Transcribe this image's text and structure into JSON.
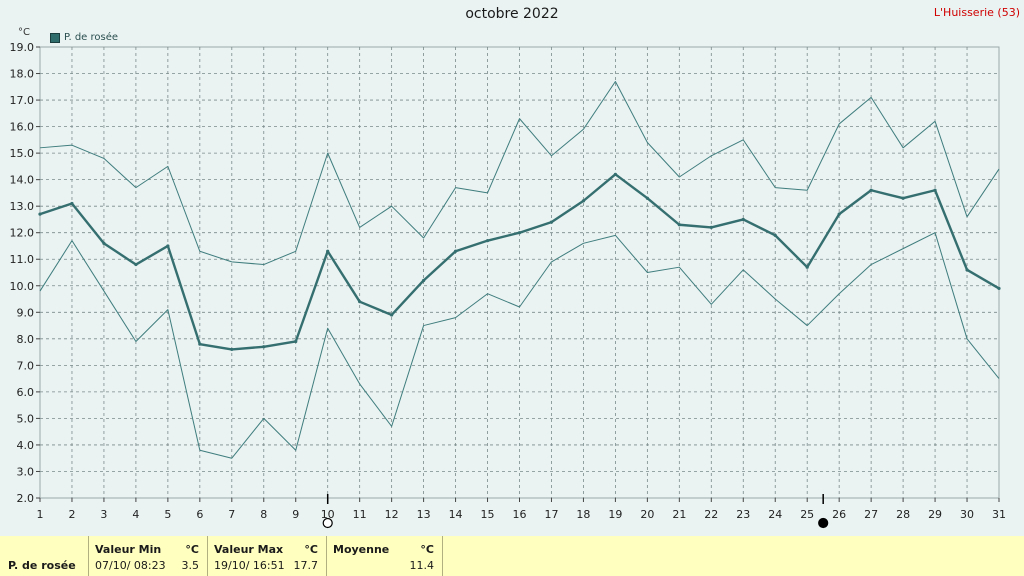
{
  "title": "octobre 2022",
  "station": "L'Huisserie (53)",
  "unit": "°C",
  "legend_label": "P. de rosée",
  "colors": {
    "background": "#eaf2f2",
    "plot_bg": "#eaf2f2",
    "grid": "#7a8a8a",
    "mean_line": "#356f6f",
    "band_line": "#3f7d7d",
    "station_text": "#d00000",
    "stats_band": "#ffffc0"
  },
  "chart_data": {
    "type": "line",
    "title": "octobre 2022",
    "xlabel": "",
    "ylabel": "°C",
    "xlim": [
      1,
      31
    ],
    "ylim": [
      2.0,
      19.0
    ],
    "grid": true,
    "legend": "top-left",
    "x": [
      1,
      2,
      3,
      4,
      5,
      6,
      7,
      8,
      9,
      10,
      11,
      12,
      13,
      14,
      15,
      16,
      17,
      18,
      19,
      20,
      21,
      22,
      23,
      24,
      25,
      26,
      27,
      28,
      29,
      30,
      31
    ],
    "y_ticks": [
      "2.0",
      "3.0",
      "4.0",
      "5.0",
      "6.0",
      "7.0",
      "8.0",
      "9.0",
      "10.0",
      "11.0",
      "12.0",
      "13.0",
      "14.0",
      "15.0",
      "16.0",
      "17.0",
      "18.0",
      "19.0"
    ],
    "x_ticks": [
      "1",
      "2",
      "3",
      "4",
      "5",
      "6",
      "7",
      "8",
      "9",
      "10",
      "11",
      "12",
      "13",
      "14",
      "15",
      "16",
      "17",
      "18",
      "19",
      "20",
      "21",
      "22",
      "23",
      "24",
      "25",
      "26",
      "27",
      "28",
      "29",
      "30",
      "31"
    ],
    "series": [
      {
        "name": "P. de rosée",
        "role": "mean",
        "values": [
          12.7,
          13.1,
          11.6,
          10.8,
          11.5,
          7.8,
          7.6,
          7.7,
          7.9,
          11.3,
          9.4,
          8.9,
          10.2,
          11.3,
          11.7,
          12.0,
          12.4,
          13.2,
          14.2,
          13.3,
          12.3,
          12.2,
          12.5,
          11.9,
          10.7,
          12.7,
          13.6,
          13.3,
          13.6,
          10.6,
          9.9
        ]
      },
      {
        "role": "max",
        "values": [
          15.2,
          15.3,
          14.8,
          13.7,
          14.5,
          11.3,
          10.9,
          10.8,
          11.3,
          15.0,
          12.2,
          13.0,
          11.8,
          13.7,
          13.5,
          16.3,
          14.9,
          15.9,
          17.7,
          15.4,
          14.1,
          14.9,
          15.5,
          13.7,
          13.6,
          16.1,
          17.1,
          15.2,
          16.2,
          12.6,
          14.4
        ]
      },
      {
        "role": "min",
        "values": [
          9.8,
          11.7,
          9.8,
          7.9,
          9.1,
          3.8,
          3.5,
          5.0,
          3.8,
          8.4,
          6.3,
          4.7,
          8.5,
          8.8,
          9.7,
          9.2,
          10.9,
          11.6,
          11.9,
          10.5,
          10.7,
          9.3,
          10.6,
          9.5,
          8.5,
          9.7,
          10.8,
          11.4,
          12.0,
          8.0,
          6.5
        ]
      }
    ],
    "moon_phases": [
      {
        "x": 10,
        "phase": "full"
      },
      {
        "x": 25.5,
        "phase": "new"
      }
    ]
  },
  "stats": {
    "row_label": "P. de rosée",
    "min": {
      "header": "Valeur Min",
      "unit": "°C",
      "date": "07/10/  08:23",
      "value": "3.5"
    },
    "max": {
      "header": "Valeur Max",
      "unit": "°C",
      "date": "19/10/  16:51",
      "value": "17.7"
    },
    "mean": {
      "header": "Moyenne",
      "unit": "°C",
      "value": "11.4"
    }
  }
}
